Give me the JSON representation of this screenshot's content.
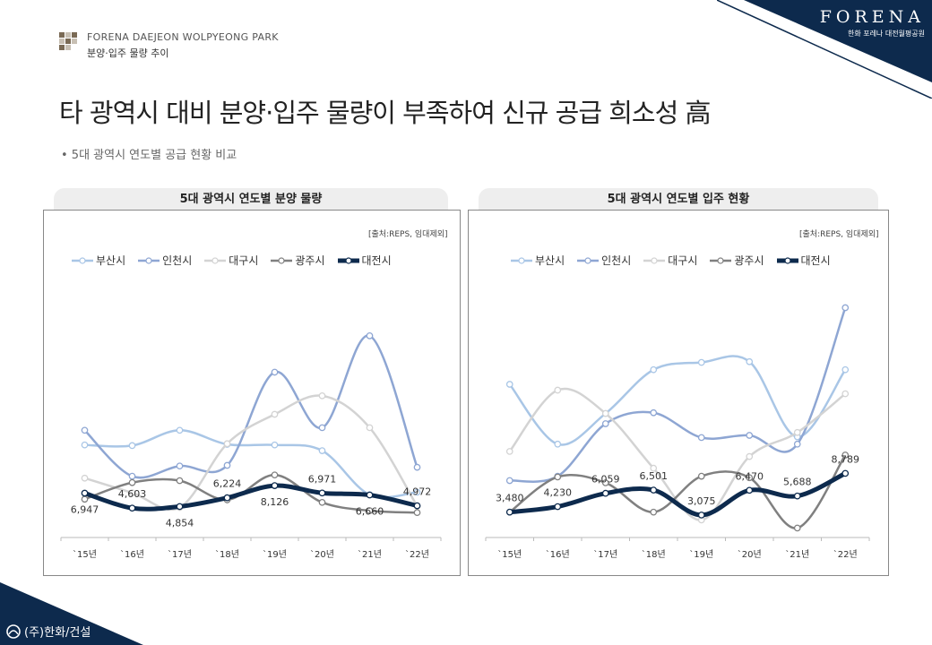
{
  "brand": {
    "logo": "FORENA",
    "sub": "한화 포레나 대전월평공원"
  },
  "header": {
    "eng": "FORENA DAEJEON WOLPYEONG PARK",
    "kor": "분양·입주 물량 추이"
  },
  "title": "타 광역시 대비 분양·입주 물량이 부족하여 신규 공급 희소성 高",
  "subtitle": "• 5대 광역시 연도별 공급 현황 비교",
  "footer": {
    "company": "(주)한화/건설"
  },
  "colors": {
    "부산시": "#a9c6e6",
    "인천시": "#8ea6d3",
    "대구시": "#d3d3d3",
    "광주시": "#808080",
    "대전시": "#0d2a4d"
  },
  "chart_data": [
    {
      "type": "line",
      "title": "5대 광역시 연도별 분양 물량",
      "source": "[출처:REPS, 임대제외]",
      "categories": [
        "`15년",
        "`16년",
        "`17년",
        "`18년",
        "`19년",
        "`20년",
        "`21년",
        "`22년"
      ],
      "series": [
        {
          "name": "부산시",
          "values": [
            14500,
            14400,
            16800,
            14600,
            14500,
            13600,
            6700,
            7100
          ]
        },
        {
          "name": "인천시",
          "values": [
            16800,
            9600,
            11200,
            11300,
            25900,
            17200,
            31600,
            11000
          ]
        },
        {
          "name": "대구시",
          "values": [
            9300,
            7000,
            4700,
            14700,
            19300,
            22200,
            17200,
            4900
          ]
        },
        {
          "name": "광주시",
          "values": [
            6000,
            8600,
            8900,
            5900,
            9800,
            5500,
            4200,
            3900
          ]
        },
        {
          "name": "대전시",
          "values": [
            6947,
            4603,
            4854,
            6224,
            8126,
            6971,
            6660,
            4972
          ]
        }
      ],
      "labels": [
        "6,947",
        "4,603",
        "4,854",
        "6,224",
        "8,126",
        "6,971",
        "6,660",
        "4,972"
      ],
      "ylim": [
        0,
        40000
      ]
    },
    {
      "type": "line",
      "title": "5대 광역시 연도별 입주 현황",
      "source": "[출처:REPS, 임대제외]",
      "categories": [
        "`15년",
        "`16년",
        "`17년",
        "`18년",
        "`19년",
        "`20년",
        "`21년",
        "`22년"
      ],
      "series": [
        {
          "name": "부산시",
          "values": [
            21000,
            12800,
            17000,
            23000,
            24000,
            24100,
            13800,
            23000
          ]
        },
        {
          "name": "인천시",
          "values": [
            7800,
            8400,
            15600,
            17100,
            13700,
            14000,
            12800,
            31500
          ]
        },
        {
          "name": "대구시",
          "values": [
            11800,
            20200,
            17000,
            9500,
            2400,
            11100,
            14400,
            19700
          ]
        },
        {
          "name": "광주시",
          "values": [
            3480,
            8300,
            7500,
            3480,
            8400,
            8200,
            1300,
            11300
          ]
        },
        {
          "name": "대전시",
          "values": [
            3480,
            4230,
            6059,
            6501,
            3075,
            6470,
            5688,
            8789
          ]
        }
      ],
      "labels": [
        "3,480",
        "4,230",
        "6,059",
        "6,501",
        "3,075",
        "6,470",
        "5,688",
        "8,789"
      ],
      "ylim": [
        0,
        35000
      ]
    }
  ]
}
